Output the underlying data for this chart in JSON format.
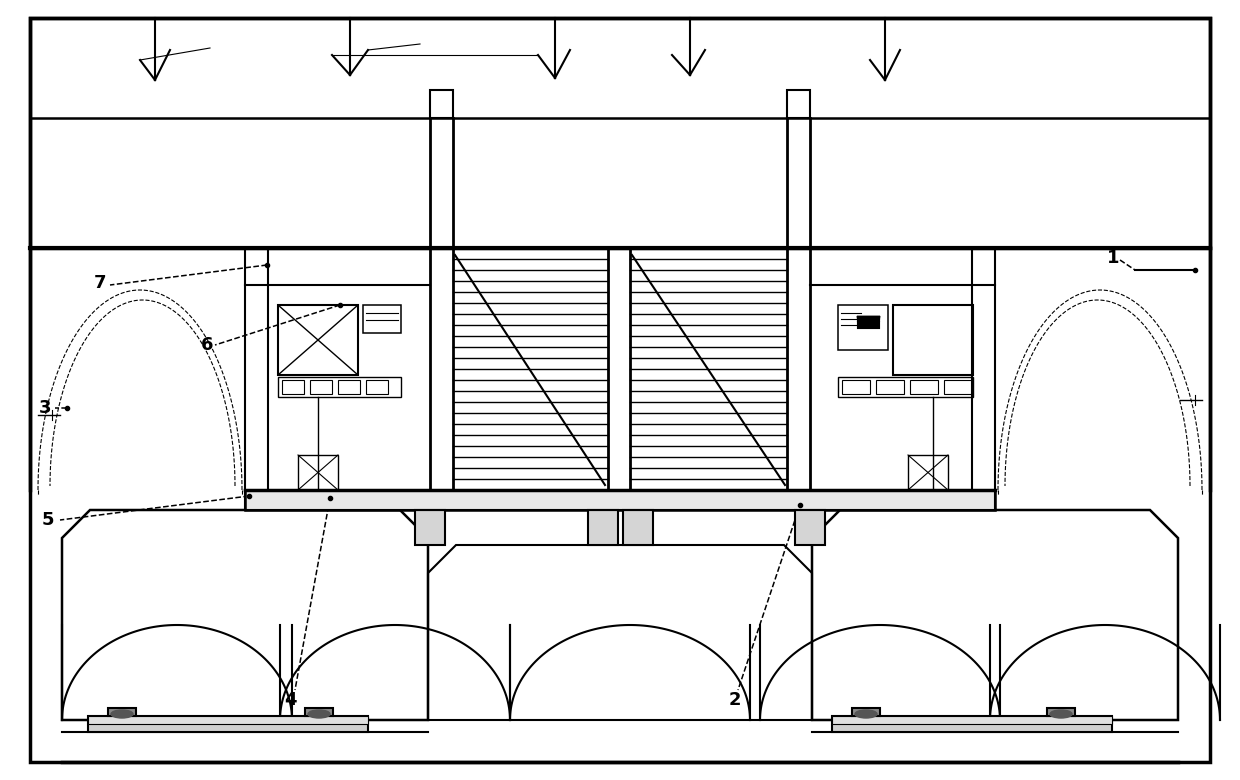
{
  "bg_color": "#ffffff",
  "line_color": "#000000",
  "lw_thick": 2.5,
  "lw_med": 1.5,
  "lw_thin": 0.8,
  "lw_vt": 0.5,
  "fig_width": 12.4,
  "fig_height": 7.8
}
